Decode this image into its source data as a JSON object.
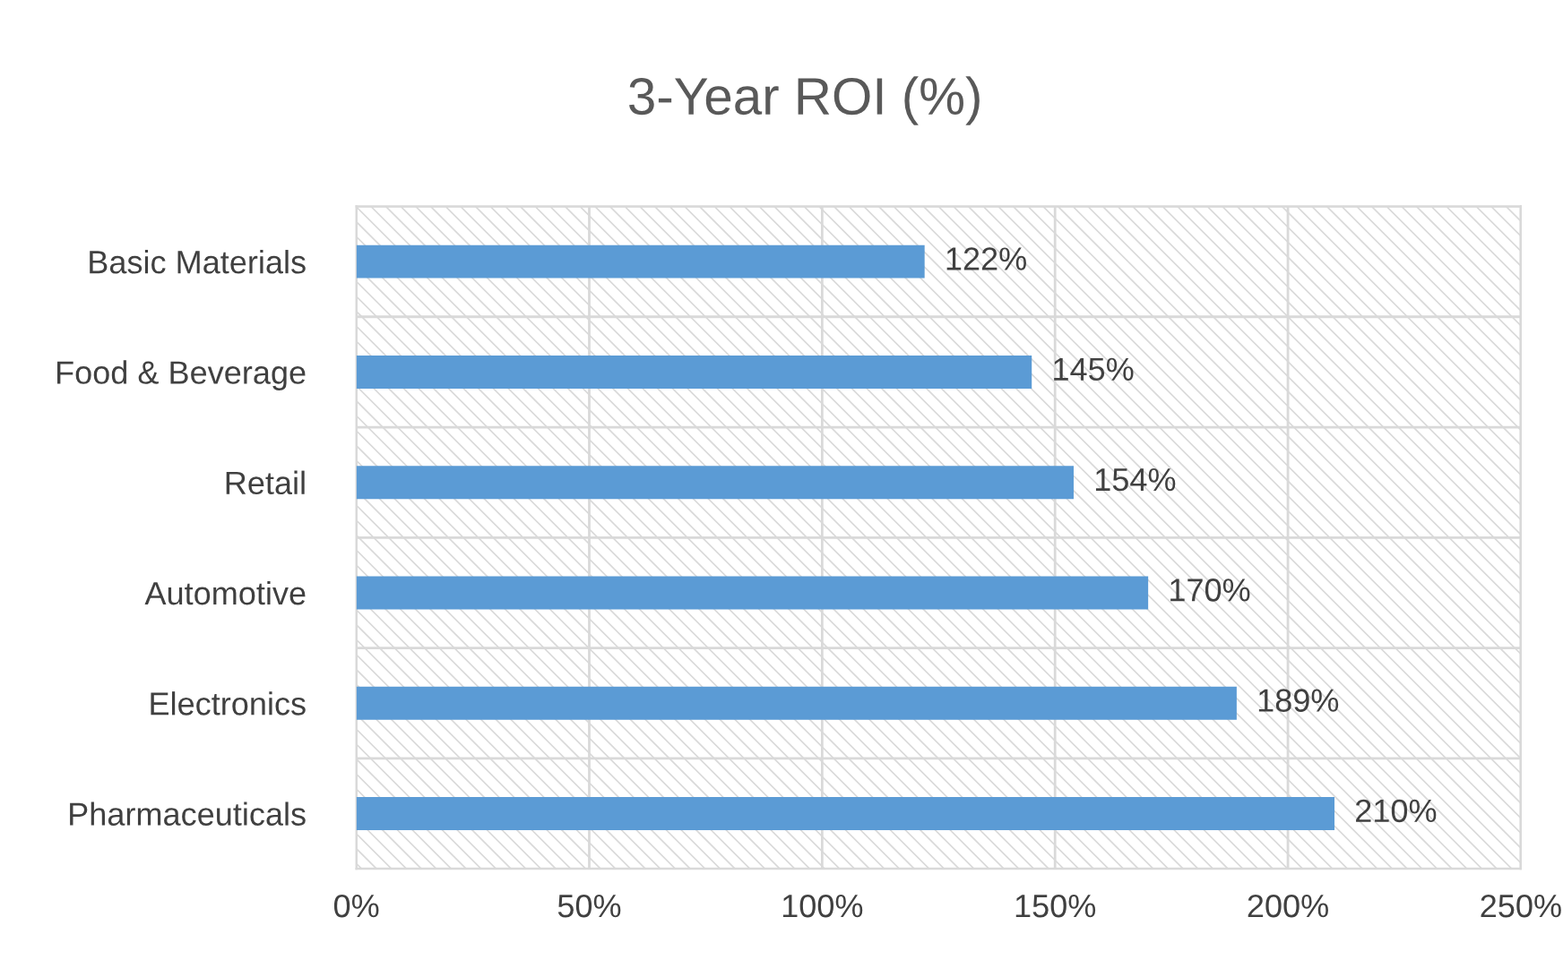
{
  "chart_data": {
    "type": "bar",
    "orientation": "horizontal",
    "title": "3-Year ROI (%)",
    "categories": [
      "Basic Materials",
      "Food & Beverage",
      "Retail",
      "Automotive",
      "Electronics",
      "Pharmaceuticals"
    ],
    "values": [
      122,
      145,
      154,
      170,
      189,
      210
    ],
    "value_labels": [
      "122%",
      "145%",
      "154%",
      "170%",
      "189%",
      "210%"
    ],
    "color": "#5b9bd5",
    "xlim": [
      0,
      250
    ],
    "xticks": [
      {
        "value": 0,
        "label": "0%"
      },
      {
        "value": 50,
        "label": "50%"
      },
      {
        "value": 100,
        "label": "100%"
      },
      {
        "value": 150,
        "label": "150%"
      },
      {
        "value": 200,
        "label": "200%"
      },
      {
        "value": 250,
        "label": "250%"
      }
    ],
    "grid": true,
    "legend": false
  }
}
